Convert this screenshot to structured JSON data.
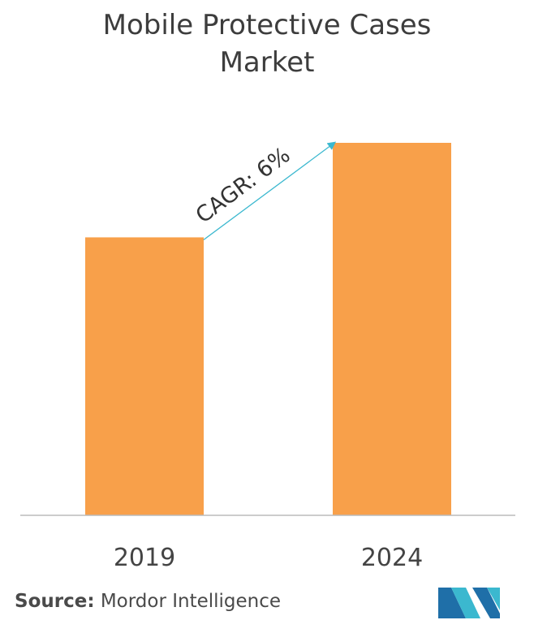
{
  "title_line1": "Mobile Protective Cases",
  "title_line2": "Market",
  "source_label": "Source:",
  "source_value": "Mordor Intelligence",
  "annotation": "CAGR: 6%",
  "colors": {
    "bar": "#F8A04A",
    "arrow": "#3BB8CF",
    "axis": "#BBBBBB"
  },
  "chart_data": {
    "type": "bar",
    "categories": [
      "2019",
      "2024"
    ],
    "values": [
      1.0,
      1.34
    ],
    "ylim": [
      0,
      1.34
    ]
  }
}
